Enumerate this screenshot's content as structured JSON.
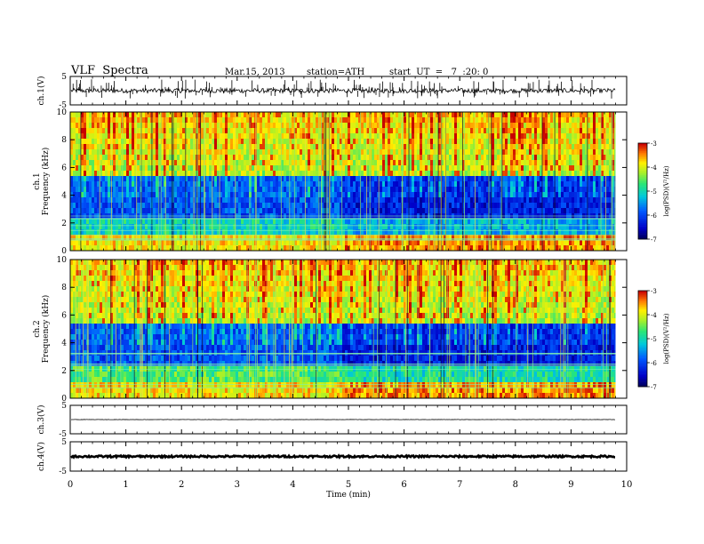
{
  "header": {
    "title": "VLF  Spectra",
    "date": "Mar.15, 2013",
    "station": "station=ATH",
    "start_ut": "start  UT  =   7  :20: 0"
  },
  "chart_data": [
    {
      "type": "line",
      "panel": "ch1",
      "ylabel": "ch.1(V)",
      "ylim": [
        -5,
        5
      ],
      "yticks": [
        "5",
        "-5"
      ],
      "xlim": [
        0,
        10
      ],
      "x_end_min": 9.8,
      "baseline": 0,
      "noise_amplitude": 0.8,
      "spike_count": 150,
      "color": "#000000"
    },
    {
      "type": "heatmap",
      "panel": "ch1_spectrogram",
      "ylabel": "ch.1\nFrequency  (kHz)",
      "ylim": [
        0,
        10
      ],
      "yticks": [
        "0",
        "2",
        "4",
        "6",
        "8",
        "10"
      ],
      "xlim": [
        0,
        10
      ],
      "x_end_min": 9.8,
      "colorbar": {
        "label": "log(PSD)(V²/Hz)",
        "range": [
          -7,
          -3
        ],
        "ticks": [
          "-3",
          "-4",
          "-5",
          "-6",
          "-7"
        ]
      }
    },
    {
      "type": "heatmap",
      "panel": "ch2_spectrogram",
      "ylabel": "ch.2\nFrequency  (kHz)",
      "ylim": [
        0,
        10
      ],
      "yticks": [
        "0",
        "2",
        "4",
        "6",
        "8",
        "10"
      ],
      "xlim": [
        0,
        10
      ],
      "x_end_min": 9.8,
      "colorbar": {
        "label": "log(PSD)(V²/Hz)",
        "range": [
          -7,
          -3
        ],
        "ticks": [
          "-3",
          "-4",
          "-5",
          "-6",
          "-7"
        ]
      }
    },
    {
      "type": "line",
      "panel": "ch3",
      "ylabel": "ch.3(V)",
      "ylim": [
        -5,
        5
      ],
      "yticks": [
        "5",
        "-5"
      ],
      "xlim": [
        0,
        10
      ],
      "x_end_min": 9.8,
      "baseline": 0,
      "noise_amplitude": 0.05,
      "color": "#000000"
    },
    {
      "type": "line",
      "panel": "ch4",
      "ylabel": "ch.4(V)",
      "ylim": [
        -5,
        5
      ],
      "yticks": [
        "5",
        "-5"
      ],
      "xlim": [
        0,
        10
      ],
      "x_end_min": 9.8,
      "baseline": 0,
      "noise_amplitude": 0.3,
      "color": "#000000"
    }
  ],
  "x_axis": {
    "label": "Time  (min)",
    "ticks": [
      "0",
      "1",
      "2",
      "3",
      "4",
      "5",
      "6",
      "7",
      "8",
      "9",
      "10"
    ]
  }
}
